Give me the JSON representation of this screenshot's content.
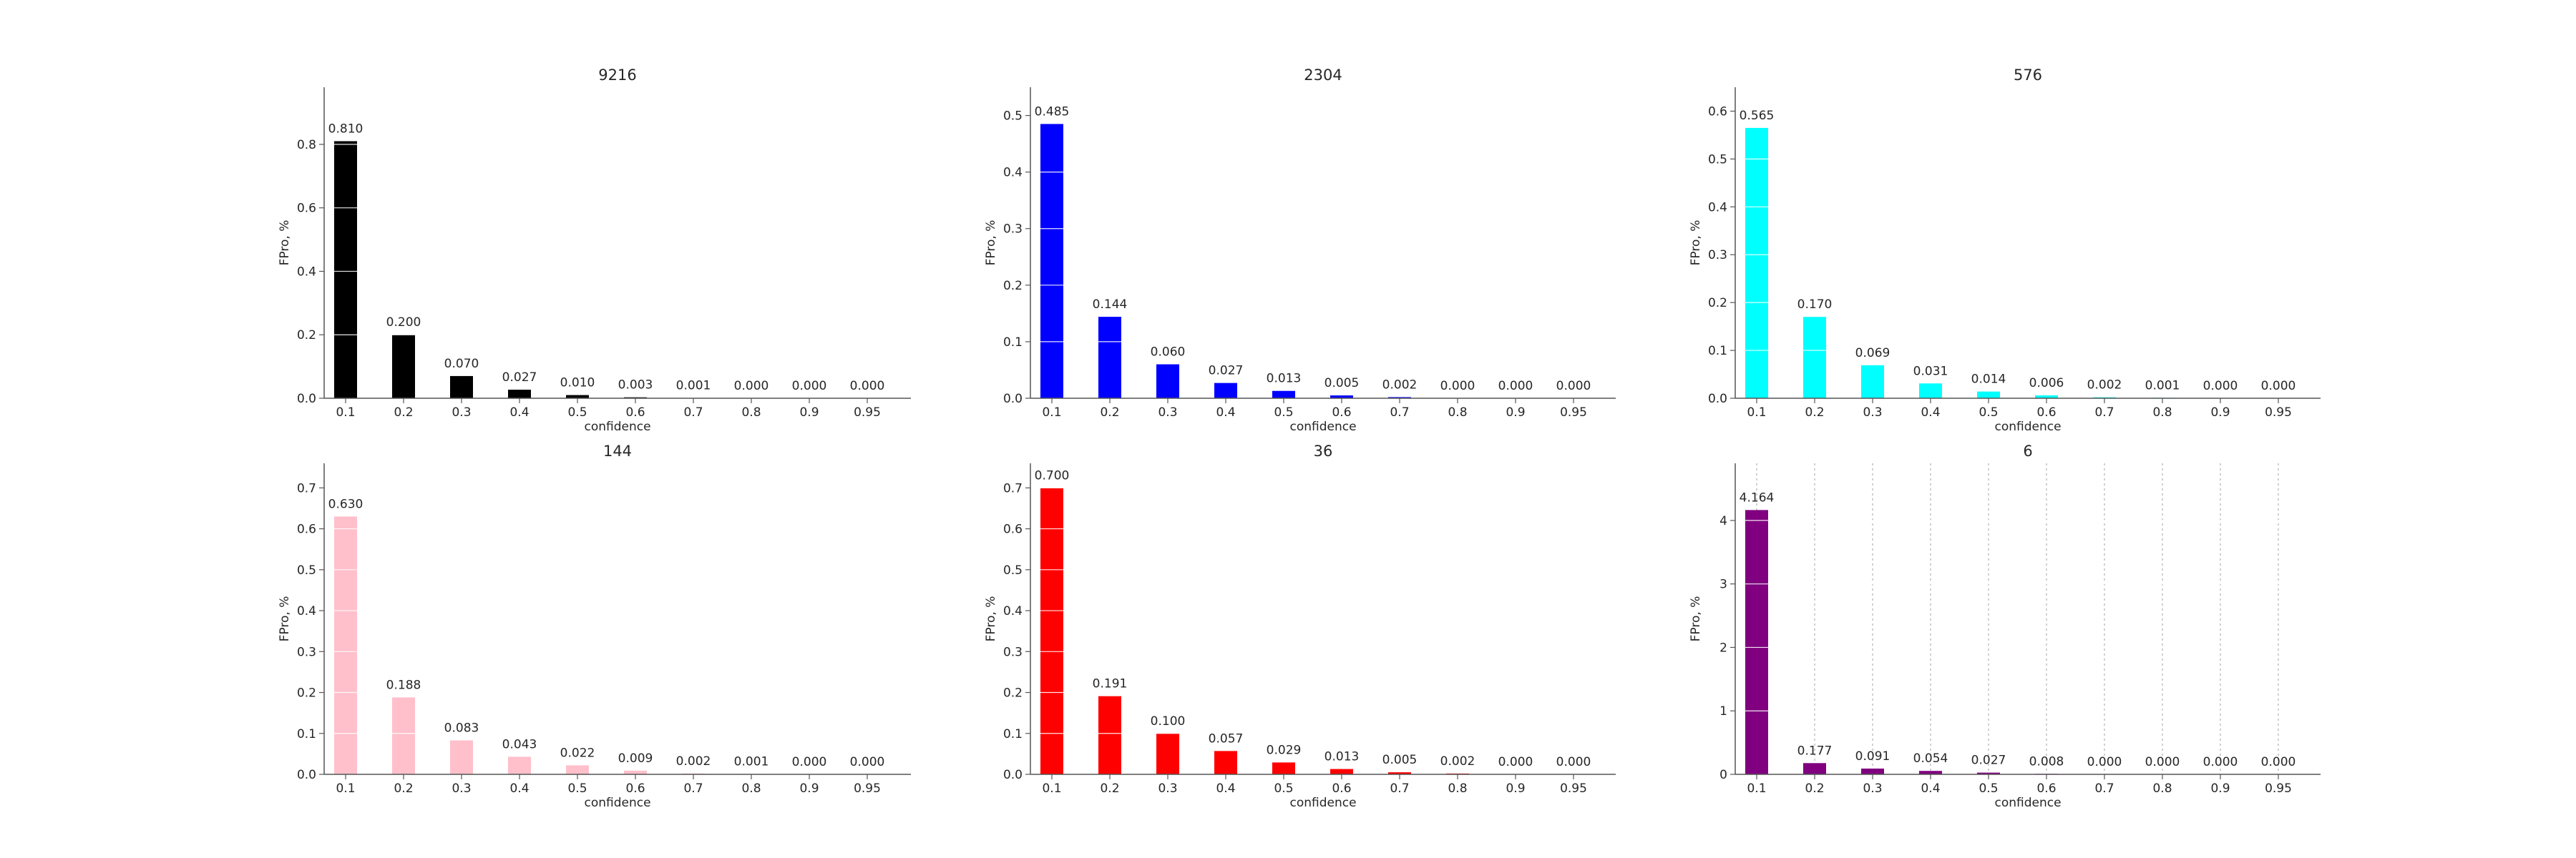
{
  "chart_data": [
    {
      "type": "bar",
      "title": "9216",
      "xlabel": "confidence",
      "ylabel": "FPro, %",
      "categories": [
        "0.1",
        "0.2",
        "0.3",
        "0.4",
        "0.5",
        "0.6",
        "0.7",
        "0.8",
        "0.9",
        "0.95"
      ],
      "values": [
        0.81,
        0.2,
        0.07,
        0.027,
        0.01,
        0.003,
        0.001,
        0.0,
        0.0,
        0.0
      ],
      "labels": [
        "0.810",
        "0.200",
        "0.070",
        "0.027",
        "0.010",
        "0.003",
        "0.001",
        "0.000",
        "0.000",
        "0.000"
      ],
      "ylim": [
        0,
        0.98
      ],
      "yticks": [
        0.0,
        0.2,
        0.4,
        0.6,
        0.8
      ],
      "ytick_labels": [
        "0.0",
        "0.2",
        "0.4",
        "0.6",
        "0.8"
      ],
      "color": "#000000",
      "vertical_grid": false
    },
    {
      "type": "bar",
      "title": "2304",
      "xlabel": "confidence",
      "ylabel": "FPro, %",
      "categories": [
        "0.1",
        "0.2",
        "0.3",
        "0.4",
        "0.5",
        "0.6",
        "0.7",
        "0.8",
        "0.9",
        "0.95"
      ],
      "values": [
        0.485,
        0.144,
        0.06,
        0.027,
        0.013,
        0.005,
        0.002,
        0.0,
        0.0,
        0.0
      ],
      "labels": [
        "0.485",
        "0.144",
        "0.060",
        "0.027",
        "0.013",
        "0.005",
        "0.002",
        "0.000",
        "0.000",
        "0.000"
      ],
      "ylim": [
        0,
        0.55
      ],
      "yticks": [
        0.0,
        0.1,
        0.2,
        0.3,
        0.4,
        0.5
      ],
      "ytick_labels": [
        "0.0",
        "0.1",
        "0.2",
        "0.3",
        "0.4",
        "0.5"
      ],
      "color": "#0000ff",
      "vertical_grid": false
    },
    {
      "type": "bar",
      "title": "576",
      "xlabel": "confidence",
      "ylabel": "FPro, %",
      "categories": [
        "0.1",
        "0.2",
        "0.3",
        "0.4",
        "0.5",
        "0.6",
        "0.7",
        "0.8",
        "0.9",
        "0.95"
      ],
      "values": [
        0.565,
        0.17,
        0.069,
        0.031,
        0.014,
        0.006,
        0.002,
        0.001,
        0.0,
        0.0
      ],
      "labels": [
        "0.565",
        "0.170",
        "0.069",
        "0.031",
        "0.014",
        "0.006",
        "0.002",
        "0.001",
        "0.000",
        "0.000"
      ],
      "ylim": [
        0,
        0.65
      ],
      "yticks": [
        0.0,
        0.1,
        0.2,
        0.3,
        0.4,
        0.5,
        0.6
      ],
      "ytick_labels": [
        "0.0",
        "0.1",
        "0.2",
        "0.3",
        "0.4",
        "0.5",
        "0.6"
      ],
      "color": "#00ffff",
      "vertical_grid": false
    },
    {
      "type": "bar",
      "title": "144",
      "xlabel": "confidence",
      "ylabel": "FPro, %",
      "categories": [
        "0.1",
        "0.2",
        "0.3",
        "0.4",
        "0.5",
        "0.6",
        "0.7",
        "0.8",
        "0.9",
        "0.95"
      ],
      "values": [
        0.63,
        0.188,
        0.083,
        0.043,
        0.022,
        0.009,
        0.002,
        0.001,
        0.0,
        0.0
      ],
      "labels": [
        "0.630",
        "0.188",
        "0.083",
        "0.043",
        "0.022",
        "0.009",
        "0.002",
        "0.001",
        "0.000",
        "0.000"
      ],
      "ylim": [
        0,
        0.76
      ],
      "yticks": [
        0.0,
        0.1,
        0.2,
        0.3,
        0.4,
        0.5,
        0.6,
        0.7
      ],
      "ytick_labels": [
        "0.0",
        "0.1",
        "0.2",
        "0.3",
        "0.4",
        "0.5",
        "0.6",
        "0.7"
      ],
      "color": "#ffc0cb",
      "vertical_grid": false
    },
    {
      "type": "bar",
      "title": "36",
      "xlabel": "confidence",
      "ylabel": "FPro, %",
      "categories": [
        "0.1",
        "0.2",
        "0.3",
        "0.4",
        "0.5",
        "0.6",
        "0.7",
        "0.8",
        "0.9",
        "0.95"
      ],
      "values": [
        0.7,
        0.191,
        0.1,
        0.057,
        0.029,
        0.013,
        0.005,
        0.002,
        0.0,
        0.0
      ],
      "labels": [
        "0.700",
        "0.191",
        "0.100",
        "0.057",
        "0.029",
        "0.013",
        "0.005",
        "0.002",
        "0.000",
        "0.000"
      ],
      "ylim": [
        0,
        0.76
      ],
      "yticks": [
        0.0,
        0.1,
        0.2,
        0.3,
        0.4,
        0.5,
        0.6,
        0.7
      ],
      "ytick_labels": [
        "0.0",
        "0.1",
        "0.2",
        "0.3",
        "0.4",
        "0.5",
        "0.6",
        "0.7"
      ],
      "color": "#ff0000",
      "vertical_grid": false
    },
    {
      "type": "bar",
      "title": "6",
      "xlabel": "confidence",
      "ylabel": "FPro, %",
      "categories": [
        "0.1",
        "0.2",
        "0.3",
        "0.4",
        "0.5",
        "0.6",
        "0.7",
        "0.8",
        "0.9",
        "0.95"
      ],
      "values": [
        4.164,
        0.177,
        0.091,
        0.054,
        0.027,
        0.008,
        0.0,
        0.0,
        0.0,
        0.0
      ],
      "labels": [
        "4.164",
        "0.177",
        "0.091",
        "0.054",
        "0.027",
        "0.008",
        "0.000",
        "0.000",
        "0.000",
        "0.000"
      ],
      "ylim": [
        0,
        4.9
      ],
      "yticks": [
        0,
        1,
        2,
        3,
        4
      ],
      "ytick_labels": [
        "0",
        "1",
        "2",
        "3",
        "4"
      ],
      "color": "#800080",
      "vertical_grid": true
    }
  ]
}
